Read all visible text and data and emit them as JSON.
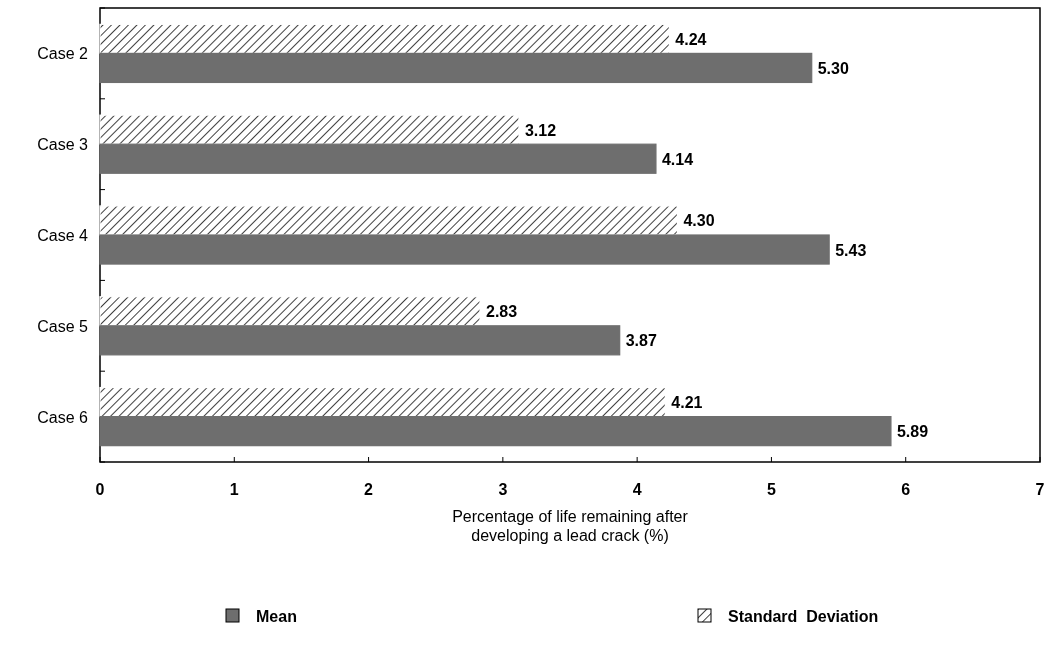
{
  "chart_data": {
    "type": "bar",
    "orientation": "horizontal",
    "xlabel": "Percentage of life remaining after\ndeveloping a lead crack (%)",
    "categories": [
      "Case 2",
      "Case 3",
      "Case 4",
      "Case 5",
      "Case 6"
    ],
    "series": [
      {
        "name": "Standard  Deviation",
        "color": "#ffffff",
        "values": [
          4.24,
          3.12,
          4.3,
          2.83,
          4.21
        ],
        "value_labels": [
          "4.24",
          "3.12",
          "4.30",
          "2.83",
          "4.21"
        ]
      },
      {
        "name": "Mean",
        "color": "#6e6e6e",
        "values": [
          5.3,
          4.14,
          5.43,
          3.87,
          5.89
        ],
        "value_labels": [
          "5.30",
          "4.14",
          "5.43",
          "3.87",
          "5.89"
        ]
      }
    ],
    "xlim": [
      0,
      7
    ],
    "xticks": [
      0,
      1,
      2,
      3,
      4,
      5,
      6,
      7
    ],
    "legend": "bottom",
    "grid": false
  }
}
